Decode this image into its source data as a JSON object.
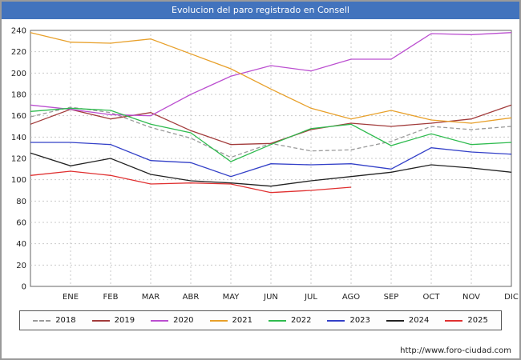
{
  "title": "Evolucion del paro registrado en Consell",
  "footer": {
    "url": "http://www.foro-ciudad.com"
  },
  "chart_data": {
    "type": "line",
    "title": "Evolucion del paro registrado en Consell",
    "xlabel": "",
    "ylabel": "",
    "categories": [
      "ENE",
      "FEB",
      "MAR",
      "ABR",
      "MAY",
      "JUN",
      "JUL",
      "AGO",
      "SEP",
      "OCT",
      "NOV",
      "DIC"
    ],
    "ylim": [
      0,
      240
    ],
    "ytick_step": 20,
    "grid": true,
    "legend_position": "bottom",
    "series": [
      {
        "name": "2018",
        "color": "#9a9a9a",
        "dash": true,
        "edge_start": 159,
        "values": [
          168,
          163,
          149,
          139,
          121,
          134,
          127,
          128,
          136,
          150,
          147,
          150
        ]
      },
      {
        "name": "2019",
        "color": "#a23b3b",
        "dash": false,
        "edge_start": 152,
        "values": [
          166,
          157,
          163,
          146,
          133,
          134,
          147,
          153,
          150,
          153,
          157,
          170
        ]
      },
      {
        "name": "2020",
        "color": "#bb4fd0",
        "dash": false,
        "edge_start": 170,
        "values": [
          166,
          161,
          160,
          180,
          197,
          207,
          202,
          213,
          213,
          237,
          236,
          238
        ]
      },
      {
        "name": "2021",
        "color": "#e8a02a",
        "dash": false,
        "edge_start": 238,
        "values": [
          229,
          228,
          232,
          218,
          204,
          185,
          167,
          157,
          165,
          156,
          153,
          158
        ]
      },
      {
        "name": "2022",
        "color": "#2fbb4f",
        "dash": false,
        "edge_start": 164,
        "values": [
          167,
          165,
          152,
          144,
          117,
          133,
          148,
          152,
          132,
          143,
          133,
          135
        ]
      },
      {
        "name": "2023",
        "color": "#3340c8",
        "dash": false,
        "edge_start": 135,
        "values": [
          135,
          133,
          118,
          116,
          103,
          115,
          114,
          115,
          110,
          130,
          126,
          124
        ]
      },
      {
        "name": "2024",
        "color": "#222222",
        "dash": false,
        "edge_start": 125,
        "values": [
          113,
          120,
          105,
          99,
          97,
          94,
          99,
          103,
          107,
          114,
          111,
          107
        ]
      },
      {
        "name": "2025",
        "color": "#e03030",
        "dash": false,
        "edge_start": 104,
        "values": [
          108,
          104,
          96,
          97,
          96,
          88,
          90,
          93,
          null,
          null,
          null,
          null
        ]
      }
    ]
  }
}
